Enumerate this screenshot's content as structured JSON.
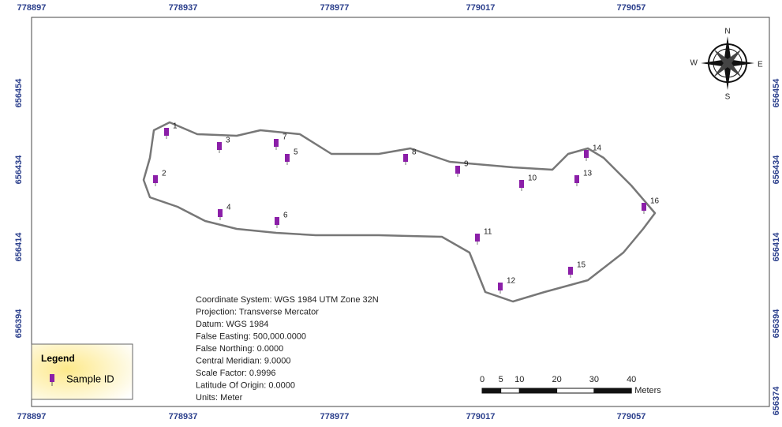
{
  "top_axis": {
    "labels": [
      "778897",
      "778937",
      "778977",
      "779017",
      "779057"
    ]
  },
  "bottom_axis": {
    "labels": [
      "778897",
      "778937",
      "778977",
      "779017",
      "779057"
    ]
  },
  "left_axis": {
    "labels": [
      "656454",
      "656434",
      "656414",
      "656394"
    ]
  },
  "right_axis": {
    "labels": [
      "656454",
      "656434",
      "656414",
      "656394",
      "656374"
    ]
  },
  "compass": {
    "n": "N",
    "e": "E",
    "s": "S",
    "w": "W"
  },
  "samples": {
    "labels": [
      "1",
      "2",
      "3",
      "4",
      "5",
      "6",
      "7",
      "8",
      "9",
      "10",
      "11",
      "12",
      "13",
      "14",
      "15",
      "16"
    ]
  },
  "projection_info": {
    "lines": [
      "Coordinate System: WGS 1984 UTM Zone 32N",
      "Projection: Transverse Mercator",
      "Datum: WGS 1984",
      "False Easting: 500,000.0000",
      "False Northing: 0.0000",
      "Central Meridian: 9.0000",
      "Scale Factor: 0.9996",
      "Latitude Of Origin: 0.0000",
      "Units: Meter"
    ]
  },
  "legend": {
    "title": "Legend",
    "item": "Sample ID"
  },
  "scale_bar": {
    "ticks": [
      0,
      5,
      10,
      20,
      30,
      40
    ],
    "unit": "Meters"
  }
}
